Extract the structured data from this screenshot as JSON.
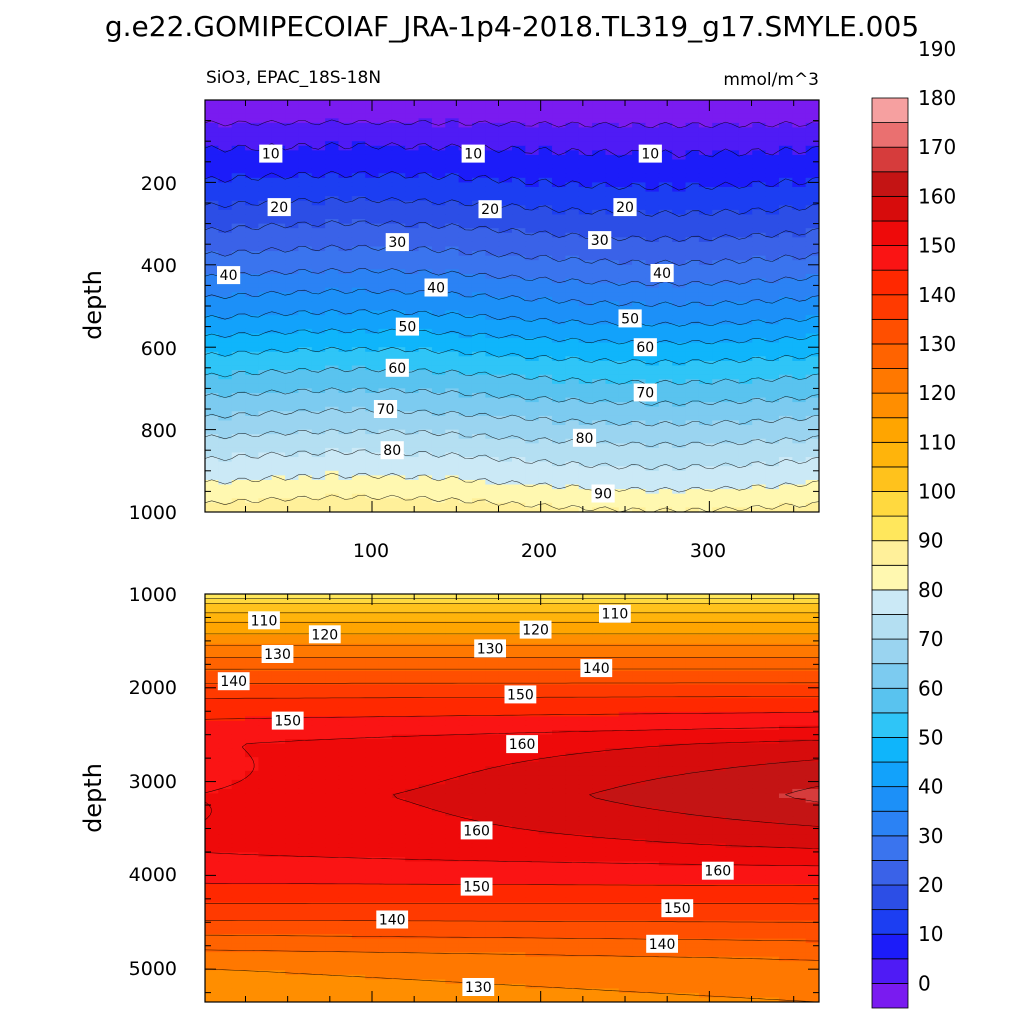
{
  "title": "g.e22.GOMIPECOIAF_JRA-1p4-2018.TL319_g17.SMYLE.005",
  "chart_data": [
    {
      "type": "heatmap",
      "panel": "top",
      "subtitle_left": "SiO3, EPAC_18S-18N",
      "subtitle_right": "mmol/m^3",
      "ylabel": "depth",
      "xlim": [
        1,
        365
      ],
      "ylim": [
        0,
        1000
      ],
      "y_reversed": true,
      "xticks": [
        "100",
        "200",
        "300"
      ],
      "yticks": [
        "200",
        "400",
        "600",
        "800",
        "1000"
      ],
      "contour_interval": 5,
      "depth_profile": [
        {
          "depth": 25,
          "value": 2
        },
        {
          "depth": 90,
          "value": 8
        },
        {
          "depth": 150,
          "value": 12
        },
        {
          "depth": 210,
          "value": 16
        },
        {
          "depth": 270,
          "value": 21
        },
        {
          "depth": 330,
          "value": 26
        },
        {
          "depth": 400,
          "value": 32
        },
        {
          "depth": 460,
          "value": 38
        },
        {
          "depth": 530,
          "value": 45
        },
        {
          "depth": 610,
          "value": 54
        },
        {
          "depth": 690,
          "value": 62
        },
        {
          "depth": 770,
          "value": 70
        },
        {
          "depth": 850,
          "value": 78
        },
        {
          "depth": 930,
          "value": 85
        },
        {
          "depth": 1000,
          "value": 92
        }
      ],
      "labels": [
        {
          "text": "10",
          "x": 40,
          "y": 130
        },
        {
          "text": "10",
          "x": 160,
          "y": 130
        },
        {
          "text": "10",
          "x": 265,
          "y": 130
        },
        {
          "text": "20",
          "x": 45,
          "y": 260
        },
        {
          "text": "20",
          "x": 170,
          "y": 265
        },
        {
          "text": "20",
          "x": 250,
          "y": 260
        },
        {
          "text": "30",
          "x": 115,
          "y": 345
        },
        {
          "text": "30",
          "x": 235,
          "y": 340
        },
        {
          "text": "40",
          "x": 15,
          "y": 425
        },
        {
          "text": "40",
          "x": 138,
          "y": 455
        },
        {
          "text": "40",
          "x": 272,
          "y": 420
        },
        {
          "text": "50",
          "x": 121,
          "y": 550
        },
        {
          "text": "50",
          "x": 253,
          "y": 530
        },
        {
          "text": "60",
          "x": 115,
          "y": 650
        },
        {
          "text": "60",
          "x": 262,
          "y": 600
        },
        {
          "text": "70",
          "x": 108,
          "y": 750
        },
        {
          "text": "70",
          "x": 262,
          "y": 710
        },
        {
          "text": "80",
          "x": 112,
          "y": 850
        },
        {
          "text": "80",
          "x": 226,
          "y": 820
        },
        {
          "text": "90",
          "x": 237,
          "y": 955
        }
      ]
    },
    {
      "type": "heatmap",
      "panel": "bottom",
      "ylabel": "depth",
      "xlim": [
        1,
        365
      ],
      "ylim": [
        1000,
        5350
      ],
      "y_reversed": true,
      "yticks": [
        "1000",
        "2000",
        "3000",
        "4000",
        "5000"
      ],
      "contour_interval": 5,
      "depth_profile_day180": [
        {
          "depth": 1000,
          "value": 95
        },
        {
          "depth": 1100,
          "value": 105
        },
        {
          "depth": 1300,
          "value": 115
        },
        {
          "depth": 1550,
          "value": 125
        },
        {
          "depth": 1800,
          "value": 135
        },
        {
          "depth": 2100,
          "value": 145
        },
        {
          "depth": 2600,
          "value": 158
        },
        {
          "depth": 3150,
          "value": 163
        },
        {
          "depth": 3700,
          "value": 158
        },
        {
          "depth": 4100,
          "value": 150
        },
        {
          "depth": 4500,
          "value": 140
        },
        {
          "depth": 4900,
          "value": 130
        },
        {
          "depth": 5350,
          "value": 125
        }
      ],
      "core_maximum": {
        "day_range": [
          300,
          365
        ],
        "depth": 3100,
        "value": 170
      },
      "labels": [
        {
          "text": "110",
          "x": 36,
          "y": 1280
        },
        {
          "text": "110",
          "x": 244,
          "y": 1210
        },
        {
          "text": "120",
          "x": 72,
          "y": 1430
        },
        {
          "text": "120",
          "x": 197,
          "y": 1380
        },
        {
          "text": "130",
          "x": 44,
          "y": 1640
        },
        {
          "text": "130",
          "x": 170,
          "y": 1580
        },
        {
          "text": "140",
          "x": 18,
          "y": 1930
        },
        {
          "text": "140",
          "x": 233,
          "y": 1790
        },
        {
          "text": "150",
          "x": 50,
          "y": 2350
        },
        {
          "text": "150",
          "x": 188,
          "y": 2070
        },
        {
          "text": "160",
          "x": 189,
          "y": 2600
        },
        {
          "text": "160",
          "x": 162,
          "y": 3520
        },
        {
          "text": "160",
          "x": 305,
          "y": 3950
        },
        {
          "text": "150",
          "x": 162,
          "y": 4120
        },
        {
          "text": "150",
          "x": 281,
          "y": 4350
        },
        {
          "text": "140",
          "x": 112,
          "y": 4470
        },
        {
          "text": "140",
          "x": 272,
          "y": 4730
        },
        {
          "text": "130",
          "x": 163,
          "y": 5190
        }
      ]
    }
  ],
  "colorbar": {
    "tick_labels": [
      "0",
      "10",
      "20",
      "30",
      "40",
      "50",
      "60",
      "70",
      "80",
      "90",
      "100",
      "110",
      "120",
      "130",
      "140",
      "150",
      "160",
      "170",
      "180",
      "190"
    ],
    "colors": [
      "#7a1bf0",
      "#4f1bf5",
      "#1c1cf9",
      "#1c3ef2",
      "#2c4ee6",
      "#3a62e8",
      "#3a74ee",
      "#2b82f4",
      "#1c90f8",
      "#12a2fb",
      "#0fb5fb",
      "#2fc5f7",
      "#59c3ef",
      "#7ccbf0",
      "#9ad4f0",
      "#b4dff2",
      "#cbe9f6",
      "#fff8b0",
      "#fff09a",
      "#ffe75c",
      "#ffd93f",
      "#ffc21c",
      "#ffb40b",
      "#ffa500",
      "#ff8e00",
      "#ff7800",
      "#ff6300",
      "#ff4f00",
      "#ff3a00",
      "#ff2800",
      "#fa1414",
      "#ee0a0a",
      "#d70c0c",
      "#c41414",
      "#d63c3c",
      "#ea7070",
      "#f6a0a0"
    ]
  }
}
